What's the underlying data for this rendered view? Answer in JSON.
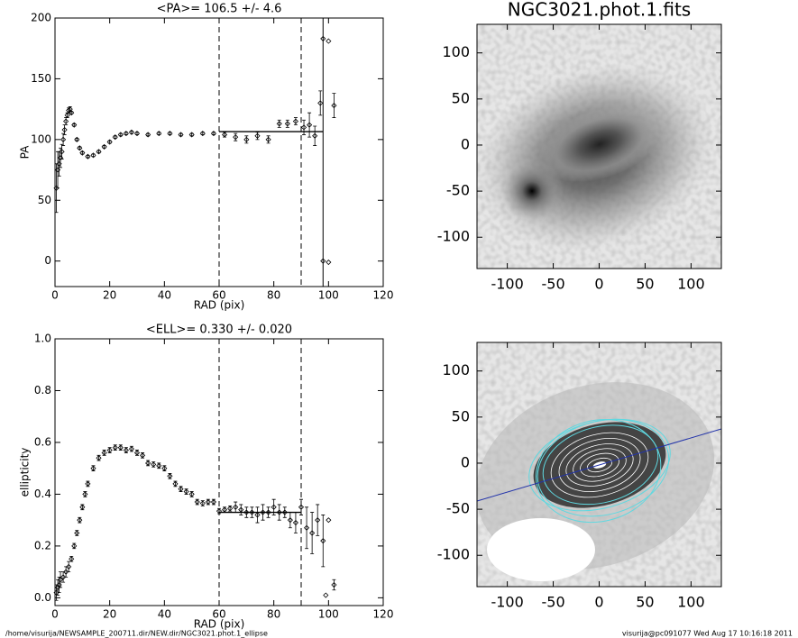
{
  "chart_data": [
    {
      "type": "scatter",
      "title": "<PA>= 106.5 +/-   4.6",
      "xlabel": "RAD (pix)",
      "ylabel": "PA",
      "xlim": [
        0,
        120
      ],
      "ylim": [
        -21,
        200
      ],
      "xticks": [
        0,
        20,
        40,
        60,
        80,
        100,
        120
      ],
      "yticks": [
        0,
        50,
        100,
        150,
        200
      ],
      "x": [
        0.5,
        1,
        1.5,
        2,
        2.5,
        3,
        3.5,
        4,
        4.5,
        5,
        5.5,
        6,
        7,
        8,
        9,
        10,
        12,
        14,
        16,
        18,
        20,
        22,
        24,
        26,
        28,
        30,
        34,
        38,
        42,
        46,
        50,
        54,
        58,
        62,
        66,
        70,
        74,
        78,
        82,
        85,
        88,
        91,
        93,
        95,
        97,
        98,
        100,
        102,
        98,
        100
      ],
      "values": [
        60,
        75,
        80,
        85,
        90,
        100,
        108,
        115,
        120,
        124,
        125,
        122,
        112,
        100,
        93,
        89,
        86,
        87,
        90,
        94,
        98,
        102,
        104,
        105,
        106,
        105,
        104,
        105,
        105,
        104,
        104,
        105,
        105,
        104,
        102,
        100,
        103,
        100,
        113,
        113,
        115,
        110,
        112,
        103,
        130,
        183,
        181,
        128,
        0,
        -1
      ],
      "errors": [
        20,
        15,
        10,
        8,
        6,
        5,
        4,
        3,
        2,
        2,
        2,
        1,
        1,
        1,
        1,
        1,
        1,
        1,
        1,
        1,
        1,
        1,
        1,
        1,
        1,
        1,
        1,
        1,
        1,
        1,
        1,
        1,
        1,
        2,
        3,
        3,
        3,
        3,
        3,
        3,
        3,
        6,
        10,
        8,
        10,
        0,
        0,
        10,
        0,
        0
      ],
      "fit_value": 106.5,
      "fit_range": [
        60,
        98
      ],
      "dashed_lines": [
        60,
        90
      ],
      "solid_line": 98,
      "color": "#000000"
    },
    {
      "type": "scatter",
      "title": "<ELL>= 0.330 +/-  0.020",
      "xlabel": "RAD (pix)",
      "ylabel": "ellipticity",
      "xlim": [
        0,
        120
      ],
      "ylim": [
        -0.03,
        1.0
      ],
      "xticks": [
        0,
        20,
        40,
        60,
        80,
        100,
        120
      ],
      "yticks": [
        {
          "value": 0,
          "label": "0.0"
        },
        0.2,
        0.4,
        0.6,
        0.8,
        {
          "value": 1,
          "label": "1.0"
        }
      ],
      "x": [
        0.5,
        1,
        1.5,
        2,
        3,
        4,
        5,
        6,
        7,
        8,
        9,
        10,
        11,
        12,
        14,
        16,
        18,
        20,
        22,
        24,
        26,
        28,
        30,
        32,
        34,
        36,
        38,
        40,
        42,
        44,
        46,
        48,
        50,
        52,
        54,
        56,
        58,
        60,
        62,
        64,
        66,
        68,
        70,
        72,
        74,
        76,
        78,
        80,
        82,
        84,
        86,
        88,
        90,
        92,
        94,
        96,
        98,
        99,
        100,
        102
      ],
      "values": [
        0.02,
        0.04,
        0.05,
        0.07,
        0.08,
        0.1,
        0.12,
        0.15,
        0.2,
        0.25,
        0.3,
        0.35,
        0.4,
        0.44,
        0.5,
        0.54,
        0.56,
        0.57,
        0.58,
        0.58,
        0.57,
        0.575,
        0.56,
        0.55,
        0.52,
        0.515,
        0.51,
        0.5,
        0.47,
        0.44,
        0.42,
        0.41,
        0.4,
        0.37,
        0.365,
        0.37,
        0.37,
        0.335,
        0.34,
        0.345,
        0.35,
        0.34,
        0.33,
        0.33,
        0.32,
        0.33,
        0.33,
        0.35,
        0.33,
        0.33,
        0.3,
        0.29,
        0.35,
        0.27,
        0.25,
        0.3,
        0.22,
        0.01,
        0.3,
        0.05
      ],
      "errors": [
        0.03,
        0.03,
        0.03,
        0.03,
        0.02,
        0.02,
        0.02,
        0.01,
        0.01,
        0.01,
        0.01,
        0.01,
        0.01,
        0.01,
        0.01,
        0.01,
        0.01,
        0.01,
        0.01,
        0.01,
        0.01,
        0.01,
        0.01,
        0.01,
        0.01,
        0.01,
        0.01,
        0.01,
        0.01,
        0.01,
        0.01,
        0.01,
        0.01,
        0.01,
        0.01,
        0.01,
        0.01,
        0.01,
        0.01,
        0.01,
        0.02,
        0.02,
        0.02,
        0.02,
        0.03,
        0.03,
        0.02,
        0.03,
        0.03,
        0.02,
        0.03,
        0.04,
        0.03,
        0.08,
        0.08,
        0.06,
        0.1,
        0,
        0,
        0.02
      ],
      "fit_value": 0.33,
      "fit_range": [
        60,
        90
      ],
      "dashed_lines": [
        60,
        90
      ],
      "color": "#000000"
    },
    {
      "type": "image",
      "title": "NGC3021.phot.1.fits",
      "xlim": [
        -133,
        133
      ],
      "ylim": [
        -134,
        131
      ],
      "xticks": [
        -100,
        -50,
        0,
        50,
        100
      ],
      "yticks": [
        -100,
        -50,
        0,
        50,
        100
      ]
    },
    {
      "type": "image",
      "xlim": [
        -133,
        133
      ],
      "ylim": [
        -134,
        131
      ],
      "xticks": [
        -100,
        -50,
        0,
        50,
        100
      ],
      "yticks": [
        -100,
        -50,
        0,
        50,
        100
      ]
    }
  ],
  "footer": {
    "left": "/home/visurija/NEWSAMPLE_200711.dir/NEW.dir/NGC3021.phot.1_ellipse",
    "right": "visurija@pc091077  Wed Aug 17 10:16:18 2011"
  }
}
